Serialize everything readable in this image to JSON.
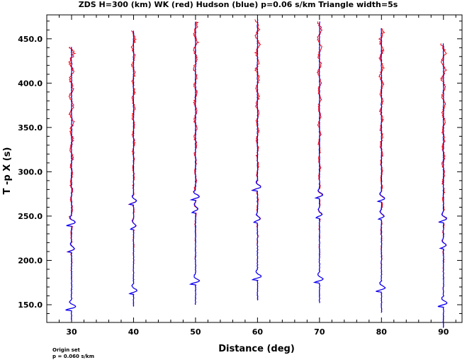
{
  "title": "ZDS H=300 (km) WK (red) Hudson (blue) p=0.06 s/km Triangle width=5s",
  "footnote": {
    "line1": "Origin set",
    "line2": "p = 0.060 s/km"
  },
  "colors": {
    "wk": "#ff0000",
    "hudson": "#0000ff",
    "axis": "#000000"
  },
  "chart_data": {
    "type": "line",
    "title": "ZDS H=300 (km) WK (red) Hudson (blue) p=0.06 s/km Triangle width=5s",
    "xlabel": "Distance (deg)",
    "ylabel": "T -p X (s)",
    "xlim": [
      26,
      93
    ],
    "ylim": [
      130,
      477
    ],
    "x_ticks": [
      30,
      40,
      50,
      60,
      70,
      80,
      90
    ],
    "x_tick_labels": [
      "30",
      "40",
      "50",
      "60",
      "70",
      "80",
      "90"
    ],
    "y_ticks": [
      150,
      200,
      250,
      300,
      350,
      400,
      450
    ],
    "y_tick_labels": [
      "150.0",
      "200.0",
      "250.0",
      "300.0",
      "350.0",
      "400.0",
      "450.0"
    ],
    "grid": false,
    "series": [
      {
        "name": "WK",
        "color": "#ff0000"
      },
      {
        "name": "Hudson",
        "color": "#0000ff"
      }
    ],
    "traces": [
      {
        "distance": 30,
        "t_start": 132,
        "t_end": 441,
        "first_arrival": 146,
        "wk_amp": 1.8
      },
      {
        "distance": 40,
        "t_start": 148,
        "t_end": 460,
        "first_arrival": 164,
        "wk_amp": 1.4
      },
      {
        "distance": 50,
        "t_start": 150,
        "t_end": 470,
        "first_arrival": 175,
        "wk_amp": 1.6
      },
      {
        "distance": 60,
        "t_start": 155,
        "t_end": 472,
        "first_arrival": 180,
        "wk_amp": 1.6
      },
      {
        "distance": 70,
        "t_start": 152,
        "t_end": 470,
        "first_arrival": 177,
        "wk_amp": 1.5
      },
      {
        "distance": 80,
        "t_start": 141,
        "t_end": 462,
        "first_arrival": 167,
        "wk_amp": 1.6
      },
      {
        "distance": 90,
        "t_start": 124,
        "t_end": 445,
        "first_arrival": 150,
        "wk_amp": 1.6
      }
    ]
  }
}
